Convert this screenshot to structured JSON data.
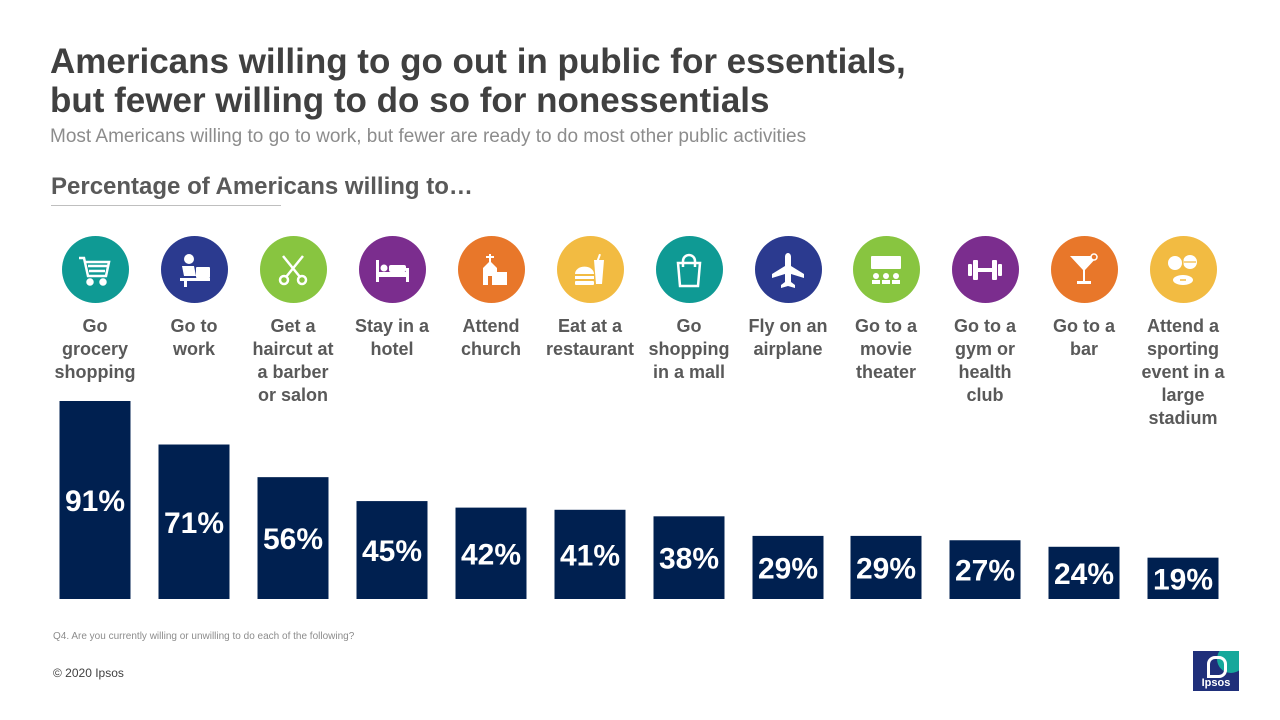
{
  "header": {
    "title_line1": "Americans willing to go out in public for essentials,",
    "title_line2": "but fewer willing to do so for nonessentials",
    "subtitle": "Most Americans willing to go to work, but fewer are ready to do most other public activities",
    "section": "Percentage of Americans willing to…"
  },
  "colors": {
    "bar": "#002050",
    "teal": "#0f9a94",
    "navy": "#2b3a8f",
    "green": "#88c540",
    "purple": "#7b2d8e",
    "orange": "#e8772a",
    "yellow": "#f2bb42"
  },
  "categories": [
    {
      "label": "Go grocery shopping",
      "lines": [
        "Go",
        "grocery",
        "shopping"
      ],
      "icon": "shopping-cart-icon",
      "color": "#0f9a94"
    },
    {
      "label": "Go to work",
      "lines": [
        "Go to",
        "work"
      ],
      "icon": "office-worker-icon",
      "color": "#2b3a8f"
    },
    {
      "label": "Get a haircut at a barber or salon",
      "lines": [
        "Get a",
        "haircut at",
        "a barber",
        "or salon"
      ],
      "icon": "scissors-icon",
      "color": "#88c540"
    },
    {
      "label": "Stay in a hotel",
      "lines": [
        "Stay in a",
        "hotel"
      ],
      "icon": "bed-icon",
      "color": "#7b2d8e"
    },
    {
      "label": "Attend church",
      "lines": [
        "Attend",
        "church"
      ],
      "icon": "church-icon",
      "color": "#e8772a"
    },
    {
      "label": "Eat at a restaurant",
      "lines": [
        "Eat at a",
        "restaurant"
      ],
      "icon": "fast-food-icon",
      "color": "#f2bb42"
    },
    {
      "label": "Go shopping in a mall",
      "lines": [
        "Go",
        "shopping",
        "in a mall"
      ],
      "icon": "shopping-bag-icon",
      "color": "#0f9a94"
    },
    {
      "label": "Fly on an airplane",
      "lines": [
        "Fly on an",
        "airplane"
      ],
      "icon": "airplane-icon",
      "color": "#2b3a8f"
    },
    {
      "label": "Go to a movie theater",
      "lines": [
        "Go to a",
        "movie",
        "theater"
      ],
      "icon": "movie-theater-icon",
      "color": "#88c540"
    },
    {
      "label": "Go to a gym or health club",
      "lines": [
        "Go to a",
        "gym or",
        "health",
        "club"
      ],
      "icon": "dumbbell-icon",
      "color": "#7b2d8e"
    },
    {
      "label": "Go to a bar",
      "lines": [
        "Go to a",
        "bar"
      ],
      "icon": "cocktail-icon",
      "color": "#e8772a"
    },
    {
      "label": "Attend a sporting event in a large stadium",
      "lines": [
        "Attend a",
        "sporting",
        "event in a",
        "large",
        "stadium"
      ],
      "icon": "sports-balls-icon",
      "color": "#f2bb42"
    }
  ],
  "chart_data": {
    "type": "bar",
    "title": "Percentage of Americans willing to…",
    "categories": [
      "Go grocery shopping",
      "Go to work",
      "Get a haircut at a barber or salon",
      "Stay in a hotel",
      "Attend church",
      "Eat at a restaurant",
      "Go shopping in a mall",
      "Fly on an airplane",
      "Go to a movie theater",
      "Go to a gym or health club",
      "Go to a bar",
      "Attend a sporting event in a large stadium"
    ],
    "values": [
      91,
      71,
      56,
      45,
      42,
      41,
      38,
      29,
      29,
      27,
      24,
      19
    ],
    "data_labels": [
      "91%",
      "71%",
      "56%",
      "45%",
      "42%",
      "41%",
      "38%",
      "29%",
      "29%",
      "27%",
      "24%",
      "19%"
    ],
    "unit": "%",
    "xlabel": "",
    "ylabel": "",
    "ylim": [
      0,
      100
    ],
    "grid": false,
    "legend": "none"
  },
  "footer": {
    "footnote": "Q4. Are you currently willing or unwilling to do each of the following?",
    "copyright": "© 2020 Ipsos",
    "logo_text": "Ipsos"
  }
}
